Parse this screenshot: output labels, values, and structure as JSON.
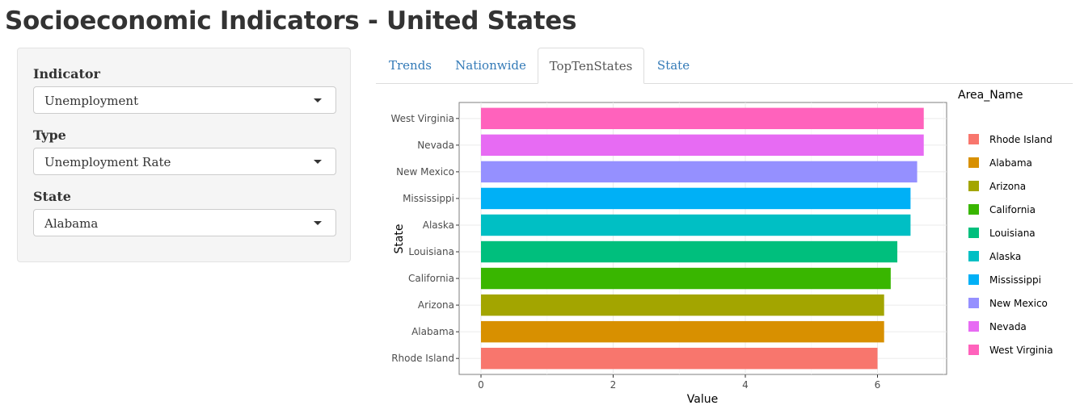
{
  "page": {
    "title": "Socioeconomic Indicators - United States"
  },
  "sidebar": {
    "controls": [
      {
        "label": "Indicator",
        "value": "Unemployment"
      },
      {
        "label": "Type",
        "value": "Unemployment Rate"
      },
      {
        "label": "State",
        "value": "Alabama"
      }
    ]
  },
  "tabs": [
    {
      "label": "Trends",
      "active": false
    },
    {
      "label": "Nationwide",
      "active": false
    },
    {
      "label": "TopTenStates",
      "active": true
    },
    {
      "label": "State",
      "active": false
    }
  ],
  "chart_data": {
    "type": "bar",
    "orientation": "horizontal",
    "xlabel": "Value",
    "ylabel": "State",
    "legend_title": "Area_Name",
    "legend_position": "right",
    "xlim": [
      0,
      7
    ],
    "xticks": [
      0,
      2,
      4,
      6
    ],
    "grid": true,
    "categories": [
      "Rhode Island",
      "Alabama",
      "Arizona",
      "California",
      "Louisiana",
      "Alaska",
      "Mississippi",
      "New Mexico",
      "Nevada",
      "West Virginia"
    ],
    "values": [
      6.0,
      6.1,
      6.1,
      6.2,
      6.3,
      6.5,
      6.5,
      6.6,
      6.7,
      6.7
    ],
    "colors": [
      "#F8766D",
      "#D89000",
      "#A3A500",
      "#39B600",
      "#00BF7D",
      "#00BFC4",
      "#00B0F6",
      "#9590FF",
      "#E76BF3",
      "#FF62BC"
    ]
  }
}
